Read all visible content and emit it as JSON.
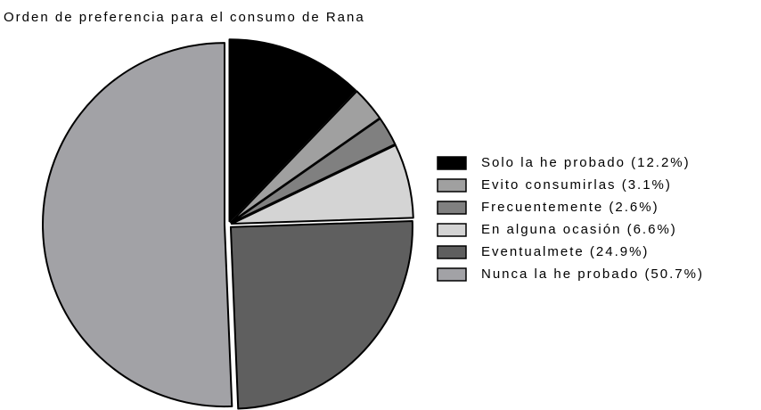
{
  "chart_data": {
    "type": "pie",
    "title": "Orden de preferencia para el consumo de Rana",
    "categories": [
      "Solo la he probado (12.2%)",
      "Evito consumirlas (3.1%)",
      "Frecuentemente (2.6%)",
      "En alguna ocasión (6.6%)",
      "Eventualmete (24.9%)",
      "Nunca la he probado (50.7%)"
    ],
    "values": [
      12.2,
      3.1,
      2.6,
      6.6,
      24.9,
      50.7
    ],
    "colors": [
      "#000000",
      "#a0a0a0",
      "#808080",
      "#d4d4d4",
      "#5f5f5f",
      "#a2a2a6"
    ],
    "legend": "right"
  }
}
